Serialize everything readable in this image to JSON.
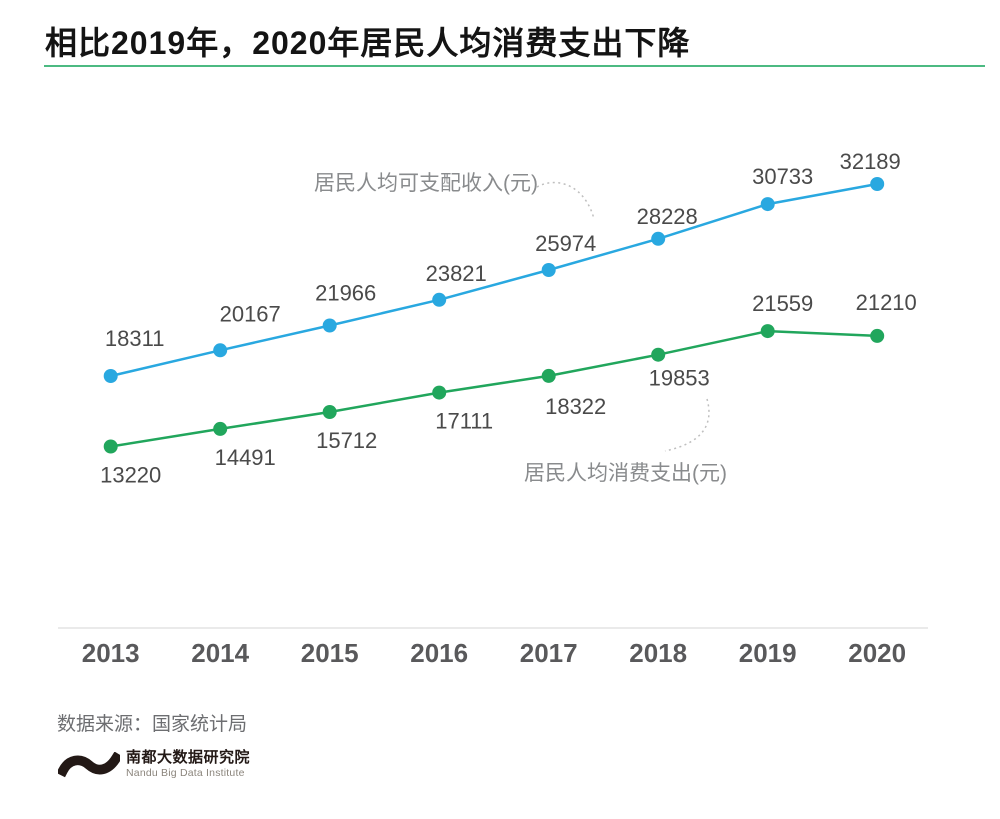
{
  "title": "相比2019年，2020年居民人均消费支出下降",
  "chart_data": {
    "type": "line",
    "categories": [
      "2013",
      "2014",
      "2015",
      "2016",
      "2017",
      "2018",
      "2019",
      "2020"
    ],
    "series": [
      {
        "name": "居民人均可支配收入(元)",
        "color": "#29A8E0",
        "values": [
          18311,
          20167,
          21966,
          23821,
          25974,
          28228,
          30733,
          32189
        ]
      },
      {
        "name": "居民人均消费支出(元)",
        "color": "#21A65C",
        "values": [
          13220,
          14491,
          15712,
          17111,
          18322,
          19853,
          21559,
          21210
        ]
      }
    ],
    "title": "相比2019年，2020年居民人均消费支出下降",
    "xlabel": "",
    "ylabel": "",
    "ylim": [
      0,
      38000
    ],
    "grid": false,
    "legend_position": "inline-callouts",
    "value_labels_shown": true,
    "x_axis_line_shown": true
  },
  "source_note": "数据来源：国家统计局",
  "logo": {
    "name_cn": "南都大数据研究院",
    "name_en": "Nandu Big Data Institute"
  },
  "colors": {
    "income_line": "#29A8E0",
    "expenditure_line": "#21A65C",
    "title_underline": "#4CBA82",
    "value_label": "#4A4A4A",
    "year_label": "#59595B",
    "axis_line": "#E3E3E3",
    "annotation_text": "#898B8D",
    "callout_dotted_line": "#BFBFBF",
    "logo_mark": "#231916"
  }
}
